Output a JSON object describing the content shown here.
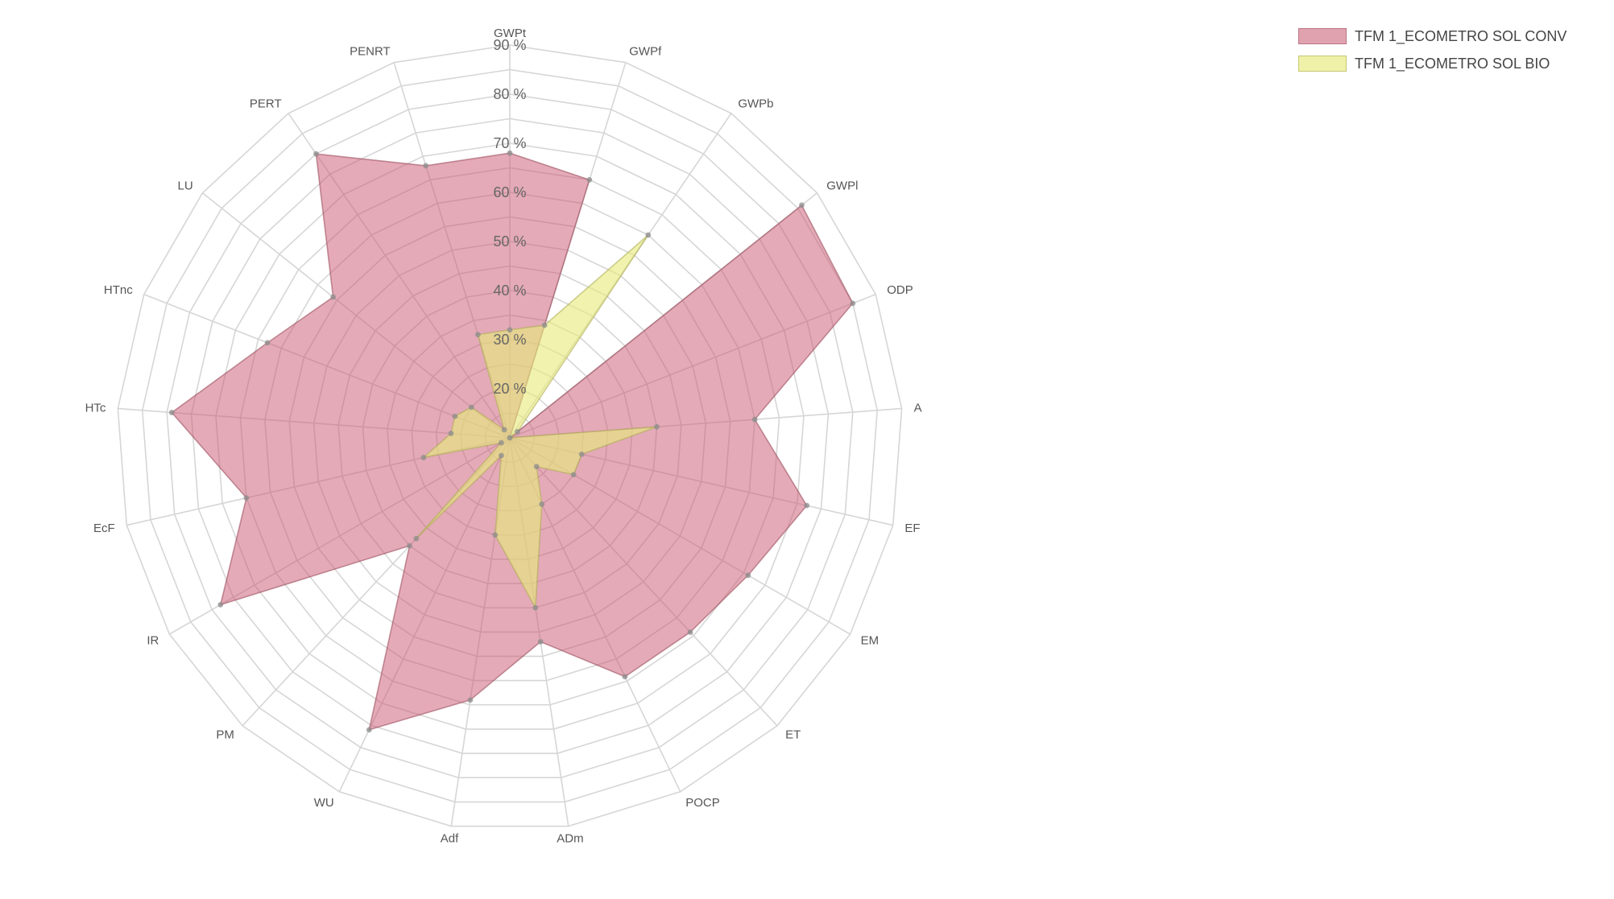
{
  "chart_data": {
    "type": "radar",
    "title": "",
    "axes": [
      "GWPt",
      "GWPf",
      "GWPb",
      "GWPl",
      "ODP",
      "A",
      "EF",
      "EM",
      "ET",
      "POCP",
      "ADm",
      "Adf",
      "WU",
      "PM",
      "IR",
      "EcF",
      "HTc",
      "HTnc",
      "LU",
      "PERT",
      "PENRT"
    ],
    "tick_values": [
      20,
      30,
      40,
      50,
      60,
      70,
      80,
      90
    ],
    "tick_labels": [
      "20 %",
      "30 %",
      "40 %",
      "50 %",
      "60 %",
      "70 %",
      "80 %",
      "90 %"
    ],
    "r_range": [
      10,
      90
    ],
    "grid": true,
    "legend_position": "top-right",
    "series": [
      {
        "name": "TFM 1_ECOMETRO SOL CONV",
        "color": "#c9566f",
        "values": [
          68,
          65,
          10,
          86,
          85,
          60,
          72,
          66,
          64,
          64,
          52,
          64,
          76,
          40,
          78,
          65,
          79,
          63,
          56,
          80,
          68
        ]
      },
      {
        "name": "TFM 1_ECOMETRO SOL BIO",
        "color": "#e7ea7a",
        "values": [
          32,
          34,
          60,
          12,
          10,
          40,
          25,
          25,
          18,
          25,
          45,
          30,
          14,
          38,
          12,
          28,
          22,
          22,
          20,
          12,
          32
        ]
      }
    ]
  }
}
